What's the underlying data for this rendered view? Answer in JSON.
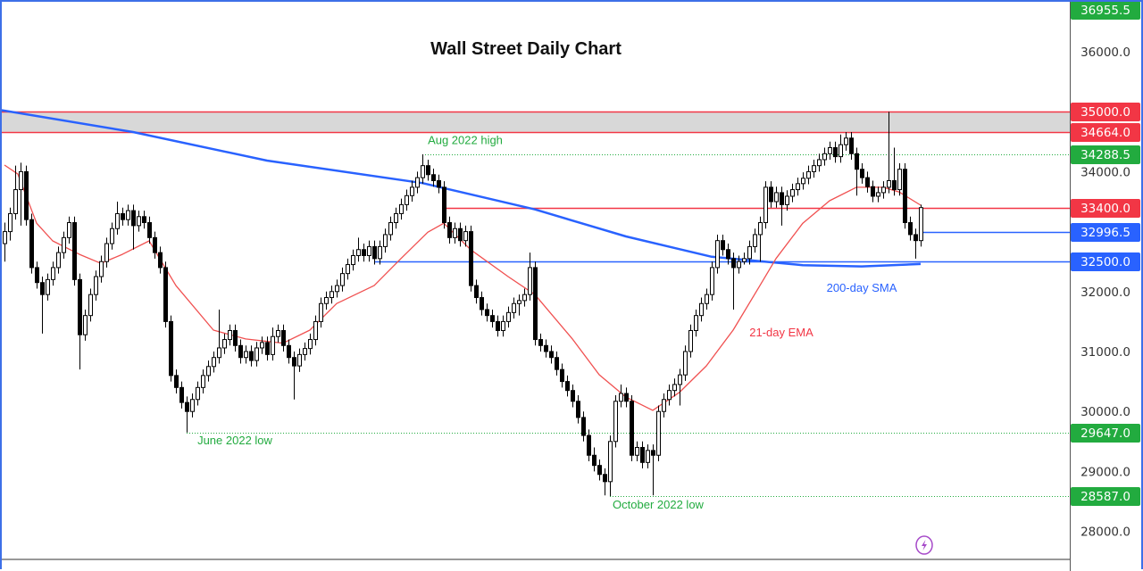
{
  "chart_data": {
    "type": "candlestick",
    "title": "Wall Street Daily Chart",
    "ylim": [
      27500,
      37000
    ],
    "y_ticks": [
      36000,
      34000,
      32000,
      31000,
      30000,
      29000,
      28000
    ],
    "grid": false,
    "colors": {
      "up_fill": "#ffffff",
      "down_fill": "#000000",
      "candle_line": "#000000",
      "ema": "#f05050",
      "sma": "#2962ff",
      "resistance": "#f23645",
      "support": "#2962ff",
      "dotted": "#22ab3f",
      "zone": "#d8d8d8"
    },
    "ohlc": [
      [
        32800,
        33150,
        32500,
        33000
      ],
      [
        33000,
        33400,
        32850,
        33300
      ],
      [
        33300,
        34100,
        33200,
        33700
      ],
      [
        33700,
        34150,
        33100,
        34000
      ],
      [
        34000,
        34100,
        33100,
        33200
      ],
      [
        33200,
        33300,
        32300,
        32400
      ],
      [
        32400,
        32500,
        32050,
        32150
      ],
      [
        32150,
        32250,
        31300,
        31950
      ],
      [
        31950,
        32300,
        31850,
        32200
      ],
      [
        32200,
        32500,
        32100,
        32400
      ],
      [
        32400,
        32750,
        32300,
        32650
      ],
      [
        32650,
        33000,
        32550,
        32900
      ],
      [
        32900,
        33250,
        32800,
        33150
      ],
      [
        33150,
        33250,
        32100,
        32200
      ],
      [
        32200,
        32300,
        30700,
        31280
      ],
      [
        31280,
        31700,
        31180,
        31600
      ],
      [
        31600,
        32050,
        31500,
        31950
      ],
      [
        31950,
        32350,
        31850,
        32250
      ],
      [
        32250,
        32600,
        32150,
        32500
      ],
      [
        32500,
        32900,
        32400,
        32800
      ],
      [
        32800,
        33150,
        32700,
        33050
      ],
      [
        33050,
        33500,
        32950,
        33300
      ],
      [
        33300,
        33400,
        33100,
        33200
      ],
      [
        33200,
        33450,
        33100,
        33350
      ],
      [
        33350,
        33450,
        32700,
        33100
      ],
      [
        33100,
        33350,
        33000,
        33250
      ],
      [
        33250,
        33350,
        33050,
        33150
      ],
      [
        33150,
        33250,
        32800,
        32900
      ],
      [
        32900,
        33000,
        32550,
        32650
      ],
      [
        32650,
        32750,
        32300,
        32400
      ],
      [
        32400,
        32500,
        31400,
        31500
      ],
      [
        31500,
        31600,
        30500,
        30600
      ],
      [
        30600,
        30700,
        30300,
        30400
      ],
      [
        30400,
        30500,
        30050,
        30150
      ],
      [
        30150,
        30250,
        29650,
        30000
      ],
      [
        30000,
        30300,
        29900,
        30200
      ],
      [
        30200,
        30500,
        30100,
        30400
      ],
      [
        30400,
        30700,
        30300,
        30600
      ],
      [
        30600,
        30850,
        30500,
        30750
      ],
      [
        30750,
        31000,
        30650,
        30900
      ],
      [
        30900,
        31700,
        30800,
        31060
      ],
      [
        31060,
        31300,
        30960,
        31200
      ],
      [
        31200,
        31450,
        31100,
        31350
      ],
      [
        31350,
        31450,
        31000,
        31100
      ],
      [
        31100,
        31200,
        30800,
        30900
      ],
      [
        30900,
        31100,
        30800,
        31000
      ],
      [
        31000,
        31100,
        30750,
        30850
      ],
      [
        30850,
        31160,
        30750,
        31060
      ],
      [
        31060,
        31250,
        30960,
        31150
      ],
      [
        31150,
        31250,
        30850,
        30950
      ],
      [
        30950,
        31400,
        30850,
        31250
      ],
      [
        31250,
        31450,
        31150,
        31350
      ],
      [
        31350,
        31450,
        31000,
        31100
      ],
      [
        31100,
        31200,
        30800,
        30900
      ],
      [
        30900,
        31000,
        30200,
        30760
      ],
      [
        30760,
        31050,
        30660,
        30950
      ],
      [
        30950,
        31150,
        30850,
        31050
      ],
      [
        31050,
        31300,
        30950,
        31200
      ],
      [
        31200,
        31600,
        31100,
        31500
      ],
      [
        31500,
        31900,
        31400,
        31800
      ],
      [
        31800,
        32000,
        31700,
        31900
      ],
      [
        31900,
        32100,
        31800,
        32000
      ],
      [
        32000,
        32200,
        31900,
        32100
      ],
      [
        32100,
        32400,
        32000,
        32300
      ],
      [
        32300,
        32550,
        32200,
        32450
      ],
      [
        32450,
        32700,
        32350,
        32600
      ],
      [
        32600,
        32900,
        32500,
        32700
      ],
      [
        32700,
        32800,
        32500,
        32600
      ],
      [
        32600,
        32850,
        32500,
        32750
      ],
      [
        32750,
        32850,
        32450,
        32550
      ],
      [
        32550,
        32850,
        32450,
        32750
      ],
      [
        32750,
        33050,
        32650,
        32950
      ],
      [
        32950,
        33250,
        32850,
        33150
      ],
      [
        33150,
        33400,
        33050,
        33300
      ],
      [
        33300,
        33550,
        33200,
        33450
      ],
      [
        33450,
        33700,
        33350,
        33600
      ],
      [
        33600,
        33850,
        33500,
        33740
      ],
      [
        33740,
        34000,
        33640,
        33900
      ],
      [
        33900,
        34290,
        33800,
        34100
      ],
      [
        34100,
        34200,
        33850,
        33950
      ],
      [
        33950,
        34050,
        33750,
        33850
      ],
      [
        33850,
        33950,
        33640,
        33740
      ],
      [
        33740,
        33840,
        33050,
        33150
      ],
      [
        33150,
        33250,
        32800,
        32900
      ],
      [
        32900,
        33150,
        32800,
        33050
      ],
      [
        33050,
        33150,
        32750,
        32850
      ],
      [
        32850,
        33100,
        32750,
        33000
      ],
      [
        33000,
        33100,
        32000,
        32100
      ],
      [
        32100,
        32200,
        31800,
        31900
      ],
      [
        31900,
        32000,
        31600,
        31700
      ],
      [
        31700,
        31800,
        31500,
        31600
      ],
      [
        31600,
        31700,
        31400,
        31500
      ],
      [
        31500,
        31600,
        31250,
        31350
      ],
      [
        31350,
        31600,
        31250,
        31500
      ],
      [
        31500,
        31750,
        31400,
        31650
      ],
      [
        31650,
        31900,
        31550,
        31800
      ],
      [
        31800,
        31950,
        31600,
        31850
      ],
      [
        31850,
        32050,
        31750,
        31950
      ],
      [
        31950,
        32650,
        31850,
        32400
      ],
      [
        32400,
        32500,
        31100,
        31200
      ],
      [
        31200,
        31300,
        31000,
        31100
      ],
      [
        31100,
        31200,
        30900,
        31000
      ],
      [
        31000,
        31100,
        30800,
        30900
      ],
      [
        30900,
        31000,
        30600,
        30700
      ],
      [
        30700,
        30800,
        30400,
        30500
      ],
      [
        30500,
        30600,
        30250,
        30350
      ],
      [
        30350,
        30450,
        30070,
        30170
      ],
      [
        30170,
        30270,
        29800,
        29900
      ],
      [
        29900,
        30000,
        29500,
        29600
      ],
      [
        29600,
        29700,
        29170,
        29270
      ],
      [
        29270,
        29400,
        29000,
        29100
      ],
      [
        29100,
        29200,
        28850,
        28950
      ],
      [
        28950,
        29050,
        28600,
        28830
      ],
      [
        28830,
        29600,
        28590,
        29500
      ],
      [
        29500,
        30270,
        29400,
        30170
      ],
      [
        30170,
        30450,
        30070,
        30300
      ],
      [
        30300,
        30400,
        30070,
        30170
      ],
      [
        30170,
        30270,
        29170,
        29270
      ],
      [
        29270,
        29500,
        29170,
        29400
      ],
      [
        29400,
        29500,
        29050,
        29150
      ],
      [
        29150,
        29450,
        29050,
        29350
      ],
      [
        29350,
        29450,
        28600,
        29270
      ],
      [
        29270,
        30100,
        29170,
        30000
      ],
      [
        30000,
        30300,
        29900,
        30200
      ],
      [
        30200,
        30450,
        30100,
        30350
      ],
      [
        30350,
        30550,
        30250,
        30450
      ],
      [
        30450,
        30710,
        30100,
        30610
      ],
      [
        30610,
        31100,
        30510,
        31000
      ],
      [
        31000,
        31450,
        30900,
        31350
      ],
      [
        31350,
        31700,
        31250,
        31600
      ],
      [
        31600,
        31900,
        31500,
        31800
      ],
      [
        31800,
        32050,
        31700,
        31950
      ],
      [
        31950,
        32500,
        31850,
        32400
      ],
      [
        32400,
        32950,
        32300,
        32850
      ],
      [
        32850,
        32950,
        32600,
        32700
      ],
      [
        32700,
        32800,
        32450,
        32550
      ],
      [
        32550,
        32650,
        31700,
        32400
      ],
      [
        32400,
        32600,
        32300,
        32500
      ],
      [
        32500,
        32650,
        32450,
        32550
      ],
      [
        32550,
        32850,
        32450,
        32750
      ],
      [
        32750,
        33050,
        32650,
        32950
      ],
      [
        32950,
        33250,
        32500,
        33150
      ],
      [
        33150,
        33840,
        33050,
        33740
      ],
      [
        33740,
        33840,
        33400,
        33500
      ],
      [
        33500,
        33750,
        33400,
        33650
      ],
      [
        33650,
        33750,
        33100,
        33450
      ],
      [
        33450,
        33690,
        33350,
        33590
      ],
      [
        33590,
        33800,
        33490,
        33700
      ],
      [
        33700,
        33900,
        33600,
        33800
      ],
      [
        33800,
        33990,
        33700,
        33890
      ],
      [
        33890,
        34100,
        33790,
        34000
      ],
      [
        34000,
        34200,
        33900,
        34100
      ],
      [
        34100,
        34300,
        34000,
        34200
      ],
      [
        34200,
        34400,
        34100,
        34300
      ],
      [
        34300,
        34500,
        34200,
        34400
      ],
      [
        34400,
        34500,
        34150,
        34250
      ],
      [
        34250,
        34620,
        34150,
        34450
      ],
      [
        34450,
        34660,
        34350,
        34560
      ],
      [
        34560,
        34660,
        34200,
        34300
      ],
      [
        34300,
        34400,
        33600,
        34040
      ],
      [
        34040,
        34140,
        33800,
        33900
      ],
      [
        33900,
        34000,
        33650,
        33750
      ],
      [
        33750,
        33850,
        33490,
        33590
      ],
      [
        33590,
        33750,
        33490,
        33650
      ],
      [
        33650,
        33840,
        33550,
        33740
      ],
      [
        33740,
        35000,
        33640,
        33850
      ],
      [
        33850,
        34400,
        33600,
        33700
      ],
      [
        33700,
        34140,
        33600,
        34040
      ],
      [
        34040,
        34140,
        33050,
        33150
      ],
      [
        33150,
        33250,
        32850,
        32950
      ],
      [
        32950,
        33050,
        32550,
        32850
      ],
      [
        32850,
        33450,
        32750,
        33400
      ]
    ],
    "ema21": {
      "name": "21-day EMA",
      "points": [
        [
          0,
          34110
        ],
        [
          2.5,
          33960
        ],
        [
          6,
          33140
        ],
        [
          9,
          32845
        ],
        [
          14,
          32620
        ],
        [
          18,
          32470
        ],
        [
          22,
          32620
        ],
        [
          27,
          32845
        ],
        [
          32,
          32100
        ],
        [
          39,
          31357
        ],
        [
          45,
          31210
        ],
        [
          52,
          31140
        ],
        [
          57,
          31357
        ],
        [
          62,
          31800
        ],
        [
          69,
          32100
        ],
        [
          74,
          32550
        ],
        [
          79,
          32990
        ],
        [
          82,
          33140
        ],
        [
          87,
          32700
        ],
        [
          94,
          32250
        ],
        [
          99,
          31950
        ],
        [
          106,
          31210
        ],
        [
          111,
          30613
        ],
        [
          116,
          30240
        ],
        [
          121,
          30020
        ],
        [
          126,
          30320
        ],
        [
          131,
          30760
        ],
        [
          136,
          31357
        ],
        [
          141,
          32100
        ],
        [
          144,
          32550
        ],
        [
          149,
          33140
        ],
        [
          154,
          33515
        ],
        [
          159,
          33740
        ],
        [
          164,
          33740
        ],
        [
          167,
          33660
        ],
        [
          171,
          33440
        ]
      ]
    },
    "sma200": {
      "name": "200-day SMA",
      "points": [
        [
          -1,
          35030
        ],
        [
          24,
          34660
        ],
        [
          49,
          34185
        ],
        [
          78,
          33810
        ],
        [
          99,
          33370
        ],
        [
          116,
          32920
        ],
        [
          132,
          32580
        ],
        [
          149,
          32440
        ],
        [
          160,
          32420
        ],
        [
          171,
          32460
        ]
      ]
    },
    "levels": [
      {
        "value": 35000.0,
        "label": "35000.0",
        "color": "#f23645",
        "style": "solid",
        "from_index": -1
      },
      {
        "value": 34664.0,
        "label": "34664.0",
        "color": "#f23645",
        "style": "solid",
        "from_index": -1
      },
      {
        "value": 34288.5,
        "label": "34288.5",
        "color": "#22ab3f",
        "style": "dotted",
        "from_index": 78
      },
      {
        "value": 33400.0,
        "label": "33400.0",
        "color": "#f23645",
        "style": "solid",
        "from_index": 82
      },
      {
        "value": 32996.5,
        "label": "32996.5",
        "color": "#2962ff",
        "style": "solid",
        "from_index": 171
      },
      {
        "value": 32500.0,
        "label": "32500.0",
        "color": "#2962ff",
        "style": "solid",
        "from_index": 69
      },
      {
        "value": 29647.0,
        "label": "29647.0",
        "color": "#22ab3f",
        "style": "dotted",
        "from_index": 34
      },
      {
        "value": 28587.0,
        "label": "28587.0",
        "color": "#22ab3f",
        "style": "dotted",
        "from_index": 113
      }
    ],
    "top_badge": {
      "value": 36955.5,
      "label": "36955.5",
      "color": "#22ab3f"
    },
    "zone": [
      34664.0,
      35000.0
    ],
    "annotations": [
      {
        "text": "Aug 2022 high",
        "index": 86,
        "value": 34460,
        "color": "#22ab3f"
      },
      {
        "text": "June 2022 low",
        "index": 43,
        "value": 29450,
        "color": "#22ab3f"
      },
      {
        "text": "October 2022 low",
        "index": 122,
        "value": 28380,
        "color": "#22ab3f"
      },
      {
        "text": "200-day SMA",
        "index": 160,
        "value": 32000,
        "color": "#2962ff"
      },
      {
        "text": "21-day EMA",
        "index": 145,
        "value": 31250,
        "color": "#f23645"
      }
    ]
  },
  "icons": {
    "bottom": "lightning-icon",
    "bottom_color": "#a64ac9"
  }
}
